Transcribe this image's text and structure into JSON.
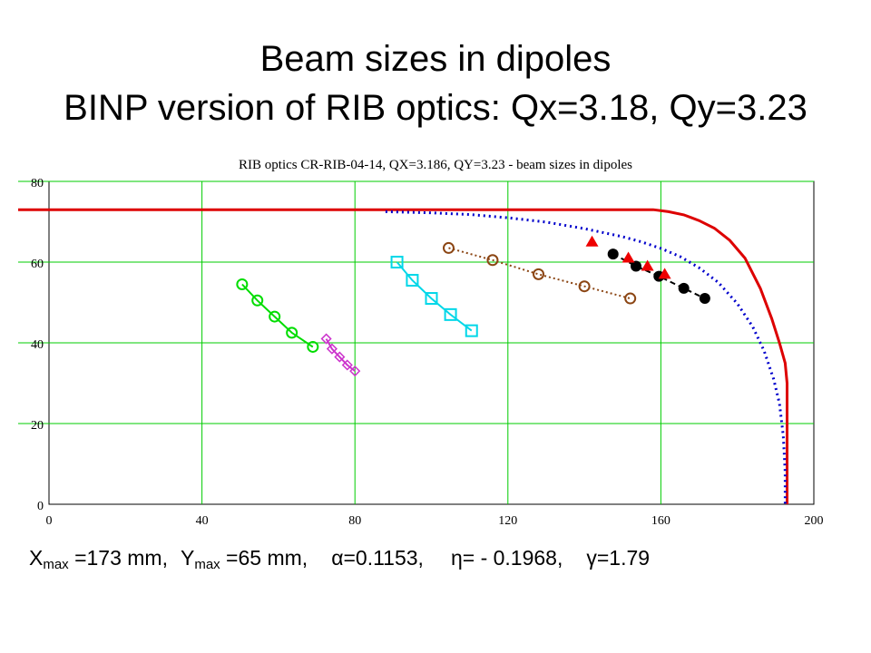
{
  "slide": {
    "title_line1": "Beam sizes in dipoles",
    "title_line2": "BINP version of RIB optics:   Qx=3.18, Qy=3.23"
  },
  "chart_data": {
    "type": "scatter",
    "title": "RIB optics CR-RIB-04-14,  QX=3.186,  QY=3.23  - beam sizes in dipoles",
    "xlabel": "",
    "ylabel": "",
    "xlim": [
      0,
      200
    ],
    "ylim": [
      0,
      80
    ],
    "x_ticks": [
      0,
      40,
      80,
      120,
      160,
      200
    ],
    "y_ticks": [
      0,
      20,
      40,
      60,
      80
    ],
    "grid": true,
    "legend": "none",
    "series": [
      {
        "color": "#00dd00",
        "style": "solid",
        "marker": "circle-open",
        "x": [
          50.5,
          54.5,
          59,
          63.5,
          69
        ],
        "y": [
          54.5,
          50.5,
          46.5,
          42.5,
          39
        ]
      },
      {
        "color": "#cc33cc",
        "style": "solid",
        "marker": "diamond-open",
        "x": [
          72.5,
          74,
          76,
          78,
          80
        ],
        "y": [
          41,
          38.5,
          36.5,
          34.5,
          33
        ]
      },
      {
        "color": "#00d7e8",
        "style": "solid",
        "marker": "square-open",
        "x": [
          91,
          95,
          100,
          105,
          110.5
        ],
        "y": [
          60,
          55.5,
          51,
          47,
          43
        ]
      },
      {
        "color": "#8b4513",
        "style": "dotted",
        "marker": "circle-open",
        "x": [
          104.5,
          116,
          128,
          140,
          152
        ],
        "y": [
          63.5,
          60.5,
          57,
          54,
          51
        ]
      },
      {
        "color": "#000000",
        "style": "dashed",
        "marker": "circle-filled",
        "x": [
          147.5,
          153.5,
          159.5,
          166,
          171.5
        ],
        "y": [
          62,
          59,
          56.5,
          53.5,
          51
        ]
      },
      {
        "color": "#ee0000",
        "style": "none",
        "marker": "triangle-filled",
        "x": [
          142,
          151.5,
          156.5,
          161
        ],
        "y": [
          65,
          61,
          59,
          57
        ]
      },
      {
        "color": "#dd0000",
        "style": "solid",
        "marker": "none",
        "role": "aperture boundary",
        "x": [
          -10,
          158,
          162,
          166,
          170,
          174,
          178,
          182,
          186,
          189,
          191,
          192.5,
          193,
          193,
          193
        ],
        "y": [
          73,
          73,
          72.5,
          71.7,
          70.3,
          68.4,
          65.4,
          61,
          53.5,
          46,
          40,
          35,
          30,
          10,
          0
        ]
      },
      {
        "color": "#0000cc",
        "style": "dotted",
        "marker": "none",
        "role": "beam envelope",
        "x": [
          88,
          100,
          110,
          120,
          130,
          140,
          150,
          155,
          160,
          165,
          170,
          175,
          180,
          184,
          187,
          189.5,
          191,
          192,
          192.5,
          192.5
        ],
        "y": [
          72.5,
          72.2,
          71.8,
          71,
          69.9,
          68.3,
          66.3,
          65,
          63.4,
          61.4,
          58.6,
          55,
          49.7,
          44,
          38,
          31,
          25,
          17,
          8,
          0
        ]
      }
    ]
  },
  "footer": {
    "xmax_pre": "X",
    "xmax_sub": "max",
    "xmax_post": " =173 mm,",
    "ymax_pre": "Y",
    "ymax_sub": "max",
    "ymax_post": " =65 mm,",
    "alpha": "α=0.1153,",
    "eta": "η= - 0.1968,",
    "gamma": "γ=1.79"
  }
}
